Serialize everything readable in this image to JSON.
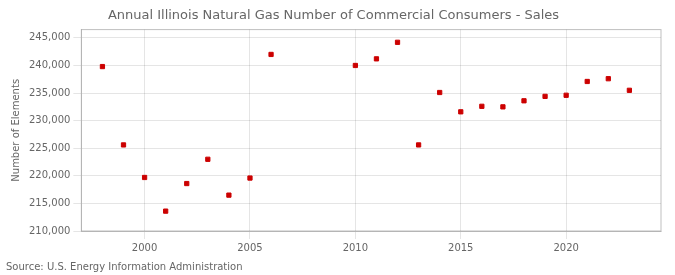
{
  "chart_data": {
    "type": "scatter",
    "title": "Annual Illinois Natural Gas Number of Commercial Consumers - Sales",
    "y_label": "Number of Elements",
    "annotations": [
      "Source: U.S. Energy Information Administration"
    ],
    "x": [
      1998,
      1999,
      2000,
      2001,
      2002,
      2003,
      2004,
      2005,
      2006,
      2010,
      2011,
      2012,
      2013,
      2014,
      2015,
      2016,
      2017,
      2018,
      2019,
      2020,
      2021,
      2022,
      2023
    ],
    "values": [
      239800,
      225600,
      219700,
      213600,
      218600,
      223000,
      216500,
      219600,
      242000,
      240000,
      241200,
      244200,
      225600,
      235100,
      231600,
      232600,
      232500,
      233600,
      234400,
      234600,
      237100,
      237600,
      235500
    ],
    "color": "#cc0000",
    "marker": "square",
    "xlim": [
      1997,
      2024.5
    ],
    "xticks": [
      2000,
      2005,
      2010,
      2015,
      2020
    ],
    "ylim": [
      210000,
      246500
    ],
    "yticks": [
      {
        "value": 210000,
        "label": "210,000"
      },
      {
        "value": 215000,
        "label": "215,000"
      },
      {
        "value": 220000,
        "label": "220,000"
      },
      {
        "value": 225000,
        "label": "225,000"
      },
      {
        "value": 230000,
        "label": "230,000"
      },
      {
        "value": 235000,
        "label": "235,000"
      },
      {
        "value": 240000,
        "label": "240,000"
      },
      {
        "value": 245000,
        "label": "245,000"
      }
    ],
    "grid": true
  }
}
